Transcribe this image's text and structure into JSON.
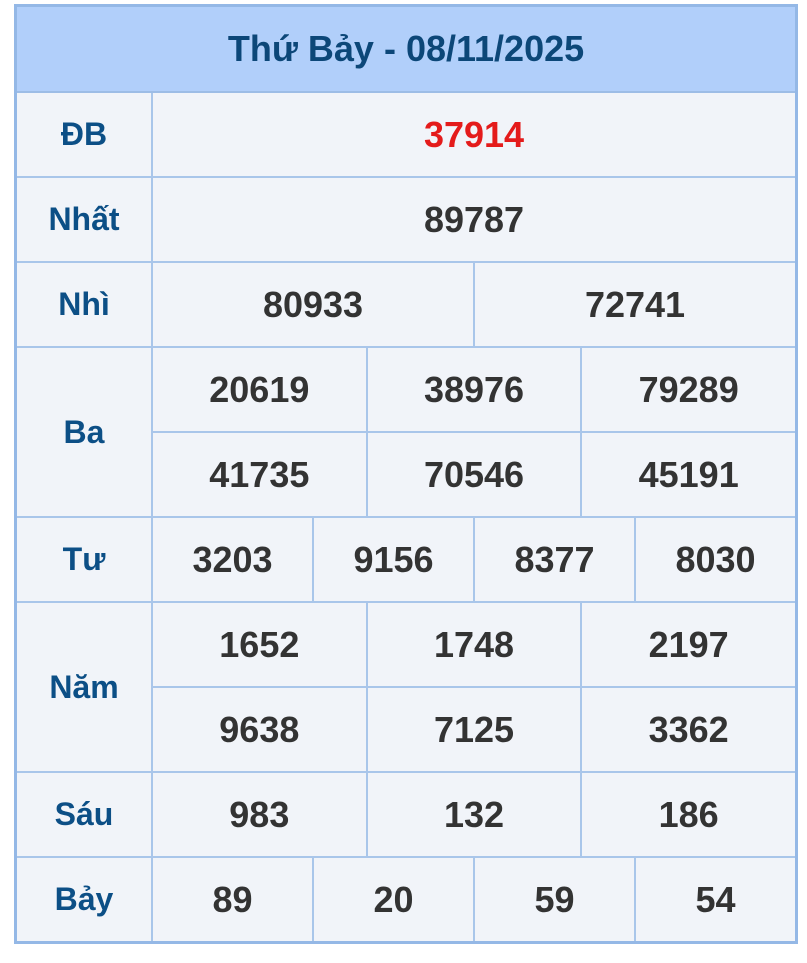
{
  "title": "Thứ Bảy - 08/11/2025",
  "colors": {
    "header_bg": "#b1cffa",
    "label": "#0c4f86",
    "special": "#e41b1b",
    "number": "#333333",
    "border": "#a9c6ea"
  },
  "prizes": {
    "db": {
      "label": "ĐB",
      "numbers": [
        "37914"
      ]
    },
    "nhat": {
      "label": "Nhất",
      "numbers": [
        "89787"
      ]
    },
    "nhi": {
      "label": "Nhì",
      "numbers": [
        "80933",
        "72741"
      ]
    },
    "ba": {
      "label": "Ba",
      "numbers": [
        "20619",
        "38976",
        "79289",
        "41735",
        "70546",
        "45191"
      ]
    },
    "tu": {
      "label": "Tư",
      "numbers": [
        "3203",
        "9156",
        "8377",
        "8030"
      ]
    },
    "nam": {
      "label": "Năm",
      "numbers": [
        "1652",
        "1748",
        "2197",
        "9638",
        "7125",
        "3362"
      ]
    },
    "sau": {
      "label": "Sáu",
      "numbers": [
        "983",
        "132",
        "186"
      ]
    },
    "bay": {
      "label": "Bảy",
      "numbers": [
        "89",
        "20",
        "59",
        "54"
      ]
    }
  }
}
